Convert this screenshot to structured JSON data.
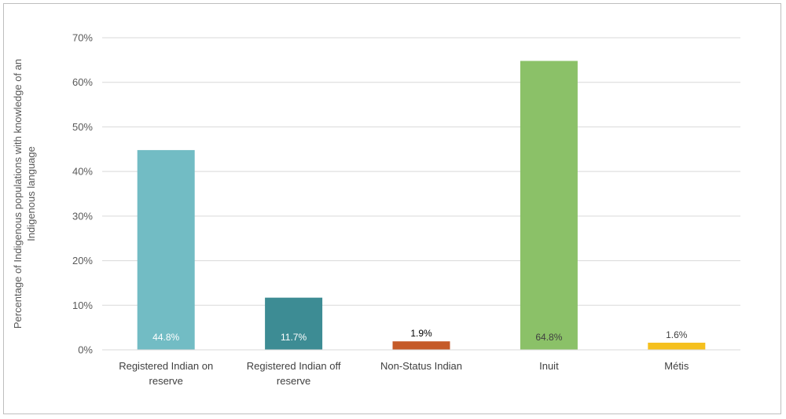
{
  "chart_data": {
    "type": "bar",
    "categories": [
      [
        "Registered Indian on",
        "reserve"
      ],
      [
        "Registered Indian off",
        "reserve"
      ],
      [
        "Non-Status Indian"
      ],
      [
        "Inuit"
      ],
      [
        "Métis"
      ]
    ],
    "values": [
      44.8,
      11.7,
      1.9,
      64.8,
      1.6
    ],
    "data_labels": [
      "44.8%",
      "11.7%",
      "1.9%",
      "64.8%",
      "1.6%"
    ],
    "colors": [
      "#72BCC4",
      "#3D8C94",
      "#C55A28",
      "#8BC168",
      "#F5C01E"
    ],
    "data_label_colors": [
      "#ffffff",
      "#ffffff",
      "#000000",
      "#404040",
      "#404040"
    ],
    "data_label_inside": [
      true,
      true,
      false,
      true,
      false
    ],
    "ylabel": [
      "Percentage of Indigenous populations with knowledge of an",
      "Indigenous language"
    ],
    "ylim": [
      0,
      70
    ],
    "yticks": [
      0,
      10,
      20,
      30,
      40,
      50,
      60,
      70
    ],
    "ytick_labels": [
      "0%",
      "10%",
      "20%",
      "30%",
      "40%",
      "50%",
      "60%",
      "70%"
    ],
    "grid": true,
    "legend": "none"
  }
}
